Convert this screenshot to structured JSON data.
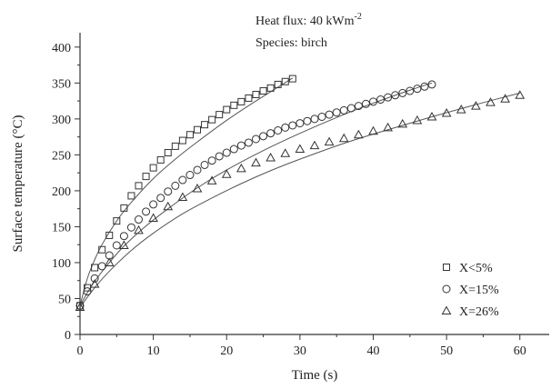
{
  "chart_data": {
    "type": "scatter",
    "xlabel": "Time (s)",
    "ylabel": "Surface temperature (°C)",
    "xlim": [
      0,
      64
    ],
    "ylim": [
      0,
      420
    ],
    "xticks": [
      0,
      10,
      20,
      30,
      40,
      50,
      60
    ],
    "yticks": [
      0,
      50,
      100,
      150,
      200,
      250,
      300,
      350,
      400
    ],
    "annotations": {
      "heat_flux": {
        "prefix": "Heat flux: 40 kWm",
        "sup": "-2"
      },
      "species": "Species: birch"
    },
    "legend_position": "bottom-right",
    "grid": false,
    "series": [
      {
        "name": "X<5%",
        "marker": "square",
        "x": [
          0,
          1,
          2,
          3,
          4,
          5,
          6,
          7,
          8,
          9,
          10,
          11,
          12,
          13,
          14,
          15,
          16,
          17,
          18,
          19,
          20,
          21,
          22,
          23,
          24,
          25,
          26,
          27,
          28,
          29
        ],
        "y": [
          40,
          65,
          93,
          118,
          138,
          158,
          176,
          193,
          207,
          220,
          232,
          243,
          253,
          262,
          270,
          278,
          285,
          292,
          299,
          306,
          313,
          319,
          324,
          329,
          334,
          339,
          343,
          348,
          352,
          356
        ],
        "fit_x": [
          0,
          1,
          2,
          3,
          5,
          7,
          10,
          13,
          16,
          20,
          24,
          29
        ],
        "fit_y": [
          40,
          78,
          104,
          125,
          158,
          184,
          217,
          244,
          268,
          298,
          325,
          357
        ]
      },
      {
        "name": "X=15%",
        "marker": "circle",
        "x": [
          0,
          1,
          2,
          3,
          4,
          5,
          6,
          7,
          8,
          9,
          10,
          11,
          12,
          13,
          14,
          15,
          16,
          17,
          18,
          19,
          20,
          21,
          22,
          23,
          24,
          25,
          26,
          27,
          28,
          29,
          30,
          31,
          32,
          33,
          34,
          35,
          36,
          37,
          38,
          39,
          40,
          41,
          42,
          43,
          44,
          45,
          46,
          47,
          48
        ],
        "y": [
          40,
          60,
          78,
          95,
          110,
          124,
          137,
          149,
          160,
          171,
          181,
          190,
          199,
          207,
          215,
          222,
          229,
          236,
          242,
          248,
          253,
          258,
          263,
          267,
          272,
          276,
          280,
          284,
          288,
          291,
          294,
          297,
          300,
          303,
          306,
          309,
          312,
          315,
          318,
          321,
          324,
          327,
          330,
          333,
          336,
          339,
          342,
          345,
          348
        ],
        "fit_x": [
          0,
          1,
          2,
          4,
          6,
          9,
          12,
          16,
          20,
          25,
          30,
          35,
          40,
          45,
          48
        ],
        "fit_y": [
          40,
          58,
          74,
          100,
          123,
          151,
          175,
          204,
          229,
          256,
          280,
          302,
          322,
          340,
          350
        ]
      },
      {
        "name": "X=26%",
        "marker": "triangle",
        "x": [
          0,
          2,
          4,
          6,
          8,
          10,
          12,
          14,
          16,
          18,
          20,
          22,
          24,
          26,
          28,
          30,
          32,
          34,
          36,
          38,
          40,
          42,
          44,
          46,
          48,
          50,
          52,
          54,
          56,
          58,
          60
        ],
        "y": [
          38,
          70,
          100,
          124,
          145,
          162,
          178,
          191,
          203,
          214,
          223,
          231,
          239,
          246,
          252,
          258,
          263,
          268,
          273,
          278,
          283,
          288,
          293,
          298,
          303,
          308,
          313,
          318,
          323,
          328,
          333
        ],
        "fit_x": [
          0,
          2,
          4,
          7,
          10,
          14,
          18,
          22,
          26,
          30,
          36,
          42,
          48,
          54,
          60
        ],
        "fit_y": [
          38,
          65,
          88,
          117,
          141,
          168,
          190,
          210,
          228,
          244,
          266,
          285,
          303,
          320,
          336
        ]
      }
    ]
  }
}
